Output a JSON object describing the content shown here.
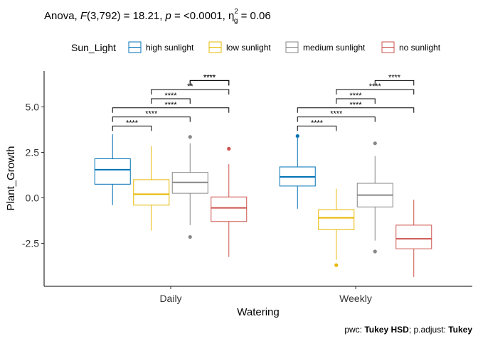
{
  "header": {
    "title_prefix": "Anova, ",
    "title_F": "F",
    "title_df": "(3,792) = 18.21, ",
    "title_p": "p",
    "title_p_val": " = <0.0001, ",
    "title_eta": "η",
    "title_eta_sub": "g",
    "title_eta_sup": "2",
    "title_eta_val": " = 0.06"
  },
  "caption": {
    "pwc_prefix": "pwc: ",
    "pwc_method": "Tukey HSD",
    "padj_prefix": "; p.adjust: ",
    "padj_method": "Tukey"
  },
  "legend": {
    "title": "Sun_Light",
    "items": [
      {
        "label": "high sunlight",
        "color": "#0072B5"
      },
      {
        "label": "low sunlight",
        "color": "#E7B800"
      },
      {
        "label": "medium sunlight",
        "color": "#868686"
      },
      {
        "label": "no sunlight",
        "color": "#CD534C"
      }
    ]
  },
  "chart_data": {
    "type": "boxplot",
    "xlabel": "Watering",
    "ylabel": "Plant_Growth",
    "categories": [
      "Daily",
      "Weekly"
    ],
    "ylim": [
      -4.25,
      7.0
    ],
    "yticks": [
      -2.5,
      0.0,
      2.5,
      5.0
    ],
    "ytick_labels": [
      "-2.5",
      "0.0",
      "2.5",
      "5.0"
    ],
    "grid": false,
    "legend_position": "top",
    "series": [
      {
        "name": "high sunlight",
        "color": "#0072B5",
        "boxes": [
          {
            "q1": 0.75,
            "median": 1.55,
            "q3": 2.15,
            "lower": -0.4,
            "upper": 3.5,
            "outliers": []
          },
          {
            "q1": 0.65,
            "median": 1.15,
            "q3": 1.7,
            "lower": -0.6,
            "upper": 3.3,
            "outliers": [
              3.4
            ]
          }
        ]
      },
      {
        "name": "low sunlight",
        "color": "#E7B800",
        "boxes": [
          {
            "q1": -0.4,
            "median": 0.2,
            "q3": 1.0,
            "lower": -1.8,
            "upper": 2.85,
            "outliers": []
          },
          {
            "q1": -1.75,
            "median": -1.1,
            "q3": -0.65,
            "lower": -3.4,
            "upper": 0.5,
            "outliers": [
              -3.7
            ]
          }
        ]
      },
      {
        "name": "medium sunlight",
        "color": "#868686",
        "boxes": [
          {
            "q1": 0.25,
            "median": 0.85,
            "q3": 1.4,
            "lower": -1.5,
            "upper": 3.0,
            "outliers": [
              3.35,
              -2.15
            ]
          },
          {
            "q1": -0.5,
            "median": 0.15,
            "q3": 0.8,
            "lower": -2.35,
            "upper": 2.3,
            "outliers": [
              3.0,
              -2.95
            ]
          }
        ]
      },
      {
        "name": "no sunlight",
        "color": "#CD534C",
        "boxes": [
          {
            "q1": -1.3,
            "median": -0.55,
            "q3": 0.05,
            "lower": -3.25,
            "upper": 1.85,
            "outliers": [
              2.7
            ]
          },
          {
            "q1": -2.8,
            "median": -2.25,
            "q3": -1.5,
            "lower": -4.35,
            "upper": -0.1,
            "outliers": []
          }
        ]
      }
    ],
    "significance": [
      {
        "category": "Daily",
        "from": 0,
        "to": 1,
        "y": 3.95,
        "label": "****"
      },
      {
        "category": "Daily",
        "from": 0,
        "to": 2,
        "y": 4.45,
        "label": "****"
      },
      {
        "category": "Daily",
        "from": 0,
        "to": 3,
        "y": 4.95,
        "label": "****"
      },
      {
        "category": "Daily",
        "from": 1,
        "to": 2,
        "y": 5.45,
        "label": "****"
      },
      {
        "category": "Daily",
        "from": 1,
        "to": 3,
        "y": 5.95,
        "label": "**"
      },
      {
        "category": "Daily",
        "from": 2,
        "to": 3,
        "y": 6.45,
        "label": "****"
      },
      {
        "category": "Daily",
        "from": 2,
        "to": 3,
        "y": 6.45,
        "label": "****"
      },
      {
        "category": "Weekly",
        "from": 0,
        "to": 1,
        "y": 3.95,
        "label": "****"
      },
      {
        "category": "Weekly",
        "from": 0,
        "to": 2,
        "y": 4.45,
        "label": "****"
      },
      {
        "category": "Weekly",
        "from": 0,
        "to": 3,
        "y": 4.95,
        "label": "****"
      },
      {
        "category": "Weekly",
        "from": 1,
        "to": 2,
        "y": 5.45,
        "label": "****"
      },
      {
        "category": "Weekly",
        "from": 1,
        "to": 3,
        "y": 5.95,
        "label": "****"
      },
      {
        "category": "Weekly",
        "from": 2,
        "to": 3,
        "y": 6.45,
        "label": "****"
      }
    ]
  }
}
